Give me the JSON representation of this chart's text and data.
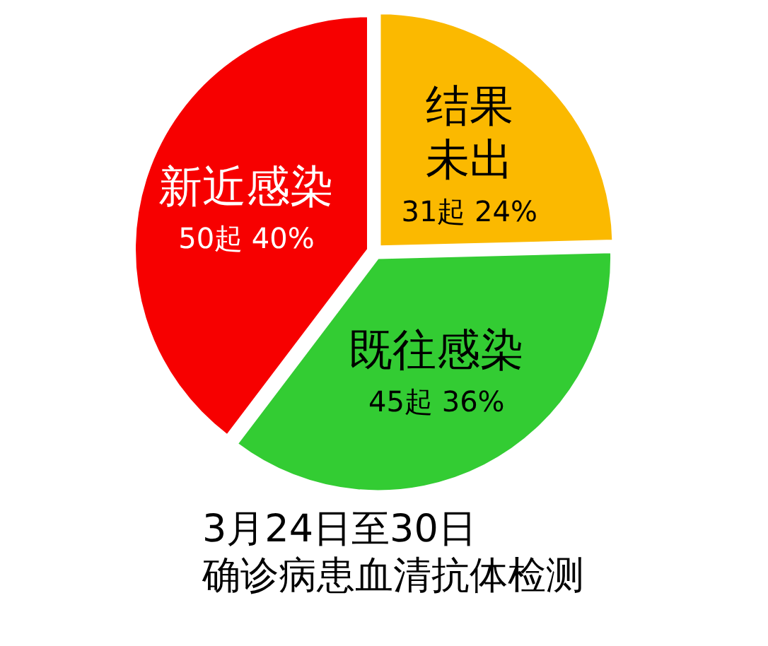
{
  "chart_data": {
    "type": "pie",
    "title": "3月24日至30日",
    "subtitle": "确诊病患血清抗体检测",
    "categories": [
      "结果未出",
      "既往感染",
      "新近感染"
    ],
    "values": [
      31,
      45,
      50
    ],
    "value_labels": [
      "31起 24%",
      "45起 36%",
      "50起 40%"
    ],
    "colors": [
      "#fbb900",
      "#33cc33",
      "#f70000"
    ]
  }
}
